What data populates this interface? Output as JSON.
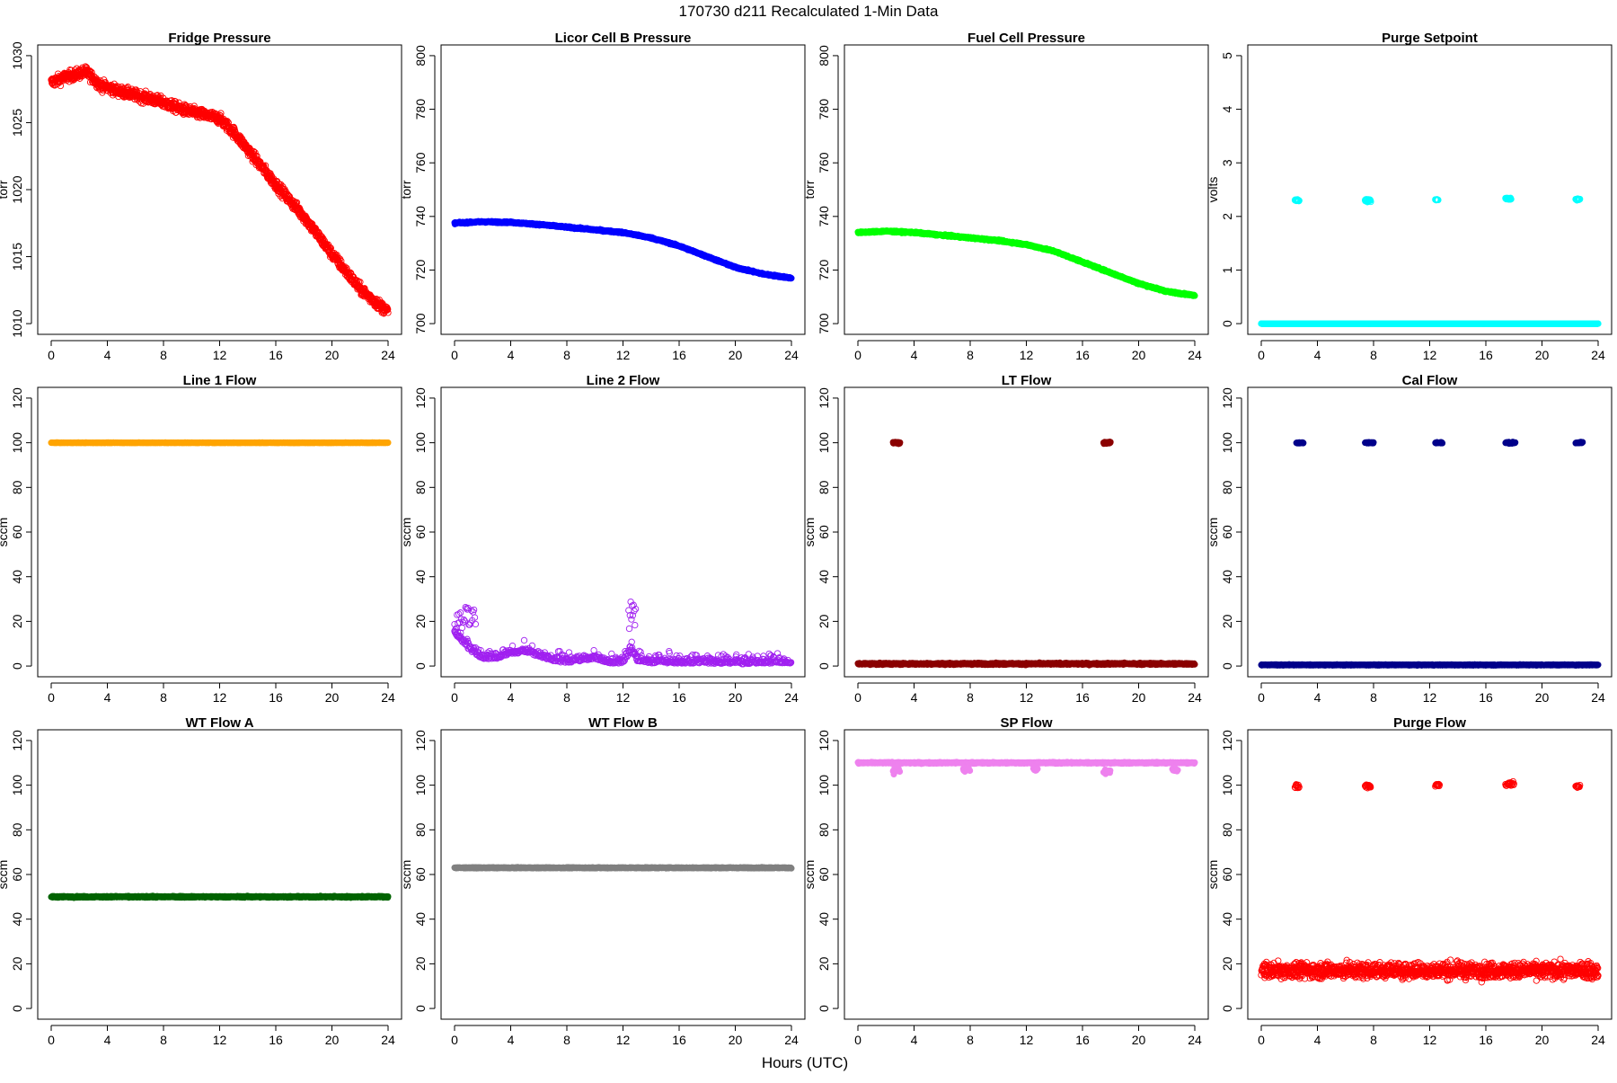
{
  "figure": {
    "title": "170730   d211   Recalculated 1-Min Data",
    "xlabel": "Hours (UTC)"
  },
  "chart_data": [
    {
      "type": "scatter",
      "title": "Fridge Pressure",
      "ylabel": "torr",
      "xlim": [
        0,
        24
      ],
      "ylim": [
        1010,
        1030
      ],
      "xticks": [
        0,
        4,
        8,
        12,
        16,
        20,
        24
      ],
      "yticks": [
        1010,
        1015,
        1020,
        1025,
        1030
      ],
      "color": "#ff0000",
      "marker": "open-circle",
      "series": [
        {
          "segments": [
            {
              "kind": "trend",
              "x": [
                0,
                1,
                2.5,
                3.5,
                5,
                7,
                8,
                9,
                10,
                12,
                13,
                14,
                16,
                18,
                20,
                22,
                23,
                24
              ],
              "y": [
                1028,
                1028.4,
                1028.8,
                1027.8,
                1027.3,
                1026.8,
                1026.5,
                1026.1,
                1025.8,
                1025.3,
                1024.3,
                1023,
                1020.4,
                1018,
                1015.2,
                1012.6,
                1011.7,
                1010.9
              ],
              "noise": 0.4,
              "step": 0.0167
            }
          ]
        }
      ]
    },
    {
      "type": "scatter",
      "title": "Licor Cell B Pressure",
      "ylabel": "torr",
      "xlim": [
        0,
        24
      ],
      "ylim": [
        700,
        800
      ],
      "xticks": [
        0,
        4,
        8,
        12,
        16,
        20,
        24
      ],
      "yticks": [
        700,
        720,
        740,
        760,
        780,
        800
      ],
      "color": "#0000ff",
      "marker": "filled",
      "series": [
        {
          "segments": [
            {
              "kind": "trend",
              "x": [
                0,
                2,
                4,
                6,
                8,
                10,
                12,
                14,
                16,
                18,
                20,
                22,
                24
              ],
              "y": [
                737.5,
                738,
                737.8,
                737,
                736,
                735,
                734,
                732,
                729,
                725,
                721,
                718.5,
                717
              ],
              "noise": 0.3,
              "step": 0.0167
            }
          ]
        }
      ]
    },
    {
      "type": "scatter",
      "title": "Fuel Cell Pressure",
      "ylabel": "torr",
      "xlim": [
        0,
        24
      ],
      "ylim": [
        700,
        800
      ],
      "xticks": [
        0,
        4,
        8,
        12,
        16,
        20,
        24
      ],
      "yticks": [
        700,
        720,
        740,
        760,
        780,
        800
      ],
      "color": "#00ff00",
      "marker": "filled",
      "series": [
        {
          "segments": [
            {
              "kind": "trend",
              "x": [
                0,
                2,
                4,
                6,
                8,
                10,
                12,
                14,
                16,
                18,
                20,
                22,
                24
              ],
              "y": [
                734,
                734.5,
                734,
                733,
                732,
                731,
                729.5,
                727,
                723,
                719,
                715,
                712,
                710.5
              ],
              "noise": 0.3,
              "step": 0.0167
            }
          ]
        }
      ]
    },
    {
      "type": "scatter",
      "title": "Purge Setpoint",
      "ylabel": "volts",
      "xlim": [
        0,
        24
      ],
      "ylim": [
        0,
        5
      ],
      "xticks": [
        0,
        4,
        8,
        12,
        16,
        20,
        24
      ],
      "yticks": [
        0,
        1,
        2,
        3,
        4,
        5
      ],
      "color": "#00ffff",
      "marker": "open-circle",
      "series": [
        {
          "segments": [
            {
              "kind": "flat",
              "x0": 0,
              "x1": 24,
              "y": 0,
              "noise": 0,
              "step": 0.0167
            },
            {
              "kind": "cluster",
              "x0": 2.4,
              "x1": 2.7,
              "y": 2.3,
              "noise": 0.02,
              "step": 0.02
            },
            {
              "kind": "cluster",
              "x0": 7.4,
              "x1": 7.8,
              "y": 2.3,
              "noise": 0.03,
              "step": 0.02
            },
            {
              "kind": "cluster",
              "x0": 12.4,
              "x1": 12.6,
              "y": 2.31,
              "noise": 0.01,
              "step": 0.02
            },
            {
              "kind": "cluster",
              "x0": 17.4,
              "x1": 17.8,
              "y": 2.33,
              "noise": 0.02,
              "step": 0.02
            },
            {
              "kind": "cluster",
              "x0": 22.4,
              "x1": 22.7,
              "y": 2.32,
              "noise": 0.02,
              "step": 0.02
            }
          ]
        }
      ]
    },
    {
      "type": "scatter",
      "title": "Line 1 Flow",
      "ylabel": "sccm",
      "xlim": [
        0,
        24
      ],
      "ylim": [
        0,
        120
      ],
      "xticks": [
        0,
        4,
        8,
        12,
        16,
        20,
        24
      ],
      "yticks": [
        0,
        20,
        40,
        60,
        80,
        100,
        120
      ],
      "color": "#ffa500",
      "marker": "filled",
      "series": [
        {
          "segments": [
            {
              "kind": "flat",
              "x0": 0,
              "x1": 24,
              "y": 100,
              "noise": 0.1,
              "step": 0.0167
            }
          ]
        }
      ]
    },
    {
      "type": "scatter",
      "title": "Line 2 Flow",
      "ylabel": "sccm",
      "xlim": [
        0,
        24
      ],
      "ylim": [
        0,
        120
      ],
      "xticks": [
        0,
        4,
        8,
        12,
        16,
        20,
        24
      ],
      "yticks": [
        0,
        20,
        40,
        60,
        80,
        100,
        120
      ],
      "color": "#a020f0",
      "marker": "open-circle",
      "series": [
        {
          "segments": [
            {
              "kind": "noisy",
              "x": [
                0,
                0.5,
                1,
                1.5,
                2,
                3,
                4,
                5,
                6,
                7,
                8,
                9,
                10,
                11,
                12,
                12.6,
                13,
                14,
                16,
                18,
                20,
                22,
                24
              ],
              "y": [
                15,
                12,
                8,
                6,
                4,
                4,
                6,
                7,
                5,
                3,
                2,
                3,
                4,
                2,
                2,
                8,
                3,
                2,
                2,
                2,
                1.5,
                2,
                2
              ],
              "noise": 4,
              "step": 0.0333
            },
            {
              "kind": "cluster",
              "x0": 0,
              "x1": 1.5,
              "y": 22,
              "noise": 7,
              "step": 0.06
            },
            {
              "kind": "cluster",
              "x0": 12.4,
              "x1": 12.9,
              "y": 22,
              "noise": 8,
              "step": 0.05
            }
          ]
        }
      ]
    },
    {
      "type": "scatter",
      "title": "LT Flow",
      "ylabel": "sccm",
      "xlim": [
        0,
        24
      ],
      "ylim": [
        0,
        120
      ],
      "xticks": [
        0,
        4,
        8,
        12,
        16,
        20,
        24
      ],
      "yticks": [
        0,
        20,
        40,
        60,
        80,
        100,
        120
      ],
      "color": "#8b0000",
      "marker": "filled",
      "series": [
        {
          "segments": [
            {
              "kind": "flat",
              "x0": 0,
              "x1": 24,
              "y": 1,
              "noise": 0.4,
              "step": 0.0167
            },
            {
              "kind": "cluster",
              "x0": 2.5,
              "x1": 3,
              "y": 100,
              "noise": 0.4,
              "step": 0.02
            },
            {
              "kind": "cluster",
              "x0": 17.5,
              "x1": 18,
              "y": 100,
              "noise": 0.4,
              "step": 0.02
            }
          ]
        }
      ]
    },
    {
      "type": "scatter",
      "title": "Cal Flow",
      "ylabel": "sccm",
      "xlim": [
        0,
        24
      ],
      "ylim": [
        0,
        120
      ],
      "xticks": [
        0,
        4,
        8,
        12,
        16,
        20,
        24
      ],
      "yticks": [
        0,
        20,
        40,
        60,
        80,
        100,
        120
      ],
      "color": "#00008b",
      "marker": "filled",
      "series": [
        {
          "segments": [
            {
              "kind": "flat",
              "x0": 0,
              "x1": 24,
              "y": 0.5,
              "noise": 0.2,
              "step": 0.0167
            },
            {
              "kind": "cluster",
              "x0": 2.5,
              "x1": 3,
              "y": 100,
              "noise": 0.3,
              "step": 0.02
            },
            {
              "kind": "cluster",
              "x0": 7.4,
              "x1": 8,
              "y": 100,
              "noise": 0.3,
              "step": 0.02
            },
            {
              "kind": "cluster",
              "x0": 12.4,
              "x1": 12.9,
              "y": 100,
              "noise": 0.3,
              "step": 0.02
            },
            {
              "kind": "cluster",
              "x0": 17.4,
              "x1": 18.1,
              "y": 100,
              "noise": 0.3,
              "step": 0.02
            },
            {
              "kind": "cluster",
              "x0": 22.4,
              "x1": 22.9,
              "y": 100,
              "noise": 0.3,
              "step": 0.02
            }
          ]
        }
      ]
    },
    {
      "type": "scatter",
      "title": "WT Flow A",
      "ylabel": "sccm",
      "xlim": [
        0,
        24
      ],
      "ylim": [
        0,
        120
      ],
      "xticks": [
        0,
        4,
        8,
        12,
        16,
        20,
        24
      ],
      "yticks": [
        0,
        20,
        40,
        60,
        80,
        100,
        120
      ],
      "color": "#006400",
      "marker": "filled",
      "series": [
        {
          "segments": [
            {
              "kind": "flat",
              "x0": 0,
              "x1": 24,
              "y": 50,
              "noise": 0.3,
              "step": 0.0167
            }
          ]
        }
      ]
    },
    {
      "type": "scatter",
      "title": "WT Flow B",
      "ylabel": "sccm",
      "xlim": [
        0,
        24
      ],
      "ylim": [
        0,
        120
      ],
      "xticks": [
        0,
        4,
        8,
        12,
        16,
        20,
        24
      ],
      "yticks": [
        0,
        20,
        40,
        60,
        80,
        100,
        120
      ],
      "color": "#808080",
      "marker": "filled",
      "series": [
        {
          "segments": [
            {
              "kind": "flat",
              "x0": 0,
              "x1": 24,
              "y": 63,
              "noise": 0.2,
              "step": 0.0167
            }
          ]
        }
      ]
    },
    {
      "type": "scatter",
      "title": "SP Flow",
      "ylabel": "sccm",
      "xlim": [
        0,
        24
      ],
      "ylim": [
        0,
        120
      ],
      "xticks": [
        0,
        4,
        8,
        12,
        16,
        20,
        24
      ],
      "yticks": [
        0,
        20,
        40,
        60,
        80,
        100,
        120
      ],
      "color": "#ee82ee",
      "marker": "filled",
      "series": [
        {
          "segments": [
            {
              "kind": "flat",
              "x0": 0,
              "x1": 24,
              "y": 110,
              "noise": 0.3,
              "step": 0.0167
            },
            {
              "kind": "cluster",
              "x0": 2.5,
              "x1": 3,
              "y": 106.5,
              "noise": 1.2,
              "step": 0.03
            },
            {
              "kind": "cluster",
              "x0": 7.5,
              "x1": 8,
              "y": 107,
              "noise": 0.8,
              "step": 0.03
            },
            {
              "kind": "cluster",
              "x0": 12.5,
              "x1": 12.8,
              "y": 107,
              "noise": 0.6,
              "step": 0.03
            },
            {
              "kind": "cluster",
              "x0": 17.5,
              "x1": 18,
              "y": 106,
              "noise": 1.2,
              "step": 0.03
            },
            {
              "kind": "cluster",
              "x0": 22.4,
              "x1": 22.8,
              "y": 107,
              "noise": 0.6,
              "step": 0.03
            }
          ]
        }
      ]
    },
    {
      "type": "scatter",
      "title": "Purge Flow",
      "ylabel": "sccm",
      "xlim": [
        0,
        24
      ],
      "ylim": [
        0,
        120
      ],
      "xticks": [
        0,
        4,
        8,
        12,
        16,
        20,
        24
      ],
      "yticks": [
        0,
        20,
        40,
        60,
        80,
        100,
        120
      ],
      "color": "#ff0000",
      "marker": "open-circle",
      "series": [
        {
          "segments": [
            {
              "kind": "flat",
              "x0": 0,
              "x1": 24,
              "y": 17,
              "noise": 3.5,
              "step": 0.0167
            },
            {
              "kind": "cluster",
              "x0": 2.4,
              "x1": 2.7,
              "y": 99.5,
              "noise": 0.8,
              "step": 0.03
            },
            {
              "kind": "cluster",
              "x0": 7.4,
              "x1": 7.8,
              "y": 99.5,
              "noise": 0.9,
              "step": 0.03
            },
            {
              "kind": "cluster",
              "x0": 12.4,
              "x1": 12.7,
              "y": 100,
              "noise": 0.8,
              "step": 0.03
            },
            {
              "kind": "cluster",
              "x0": 17.4,
              "x1": 18,
              "y": 100.5,
              "noise": 1.2,
              "step": 0.03
            },
            {
              "kind": "cluster",
              "x0": 22.4,
              "x1": 22.7,
              "y": 99.5,
              "noise": 0.6,
              "step": 0.03
            }
          ]
        }
      ]
    }
  ]
}
